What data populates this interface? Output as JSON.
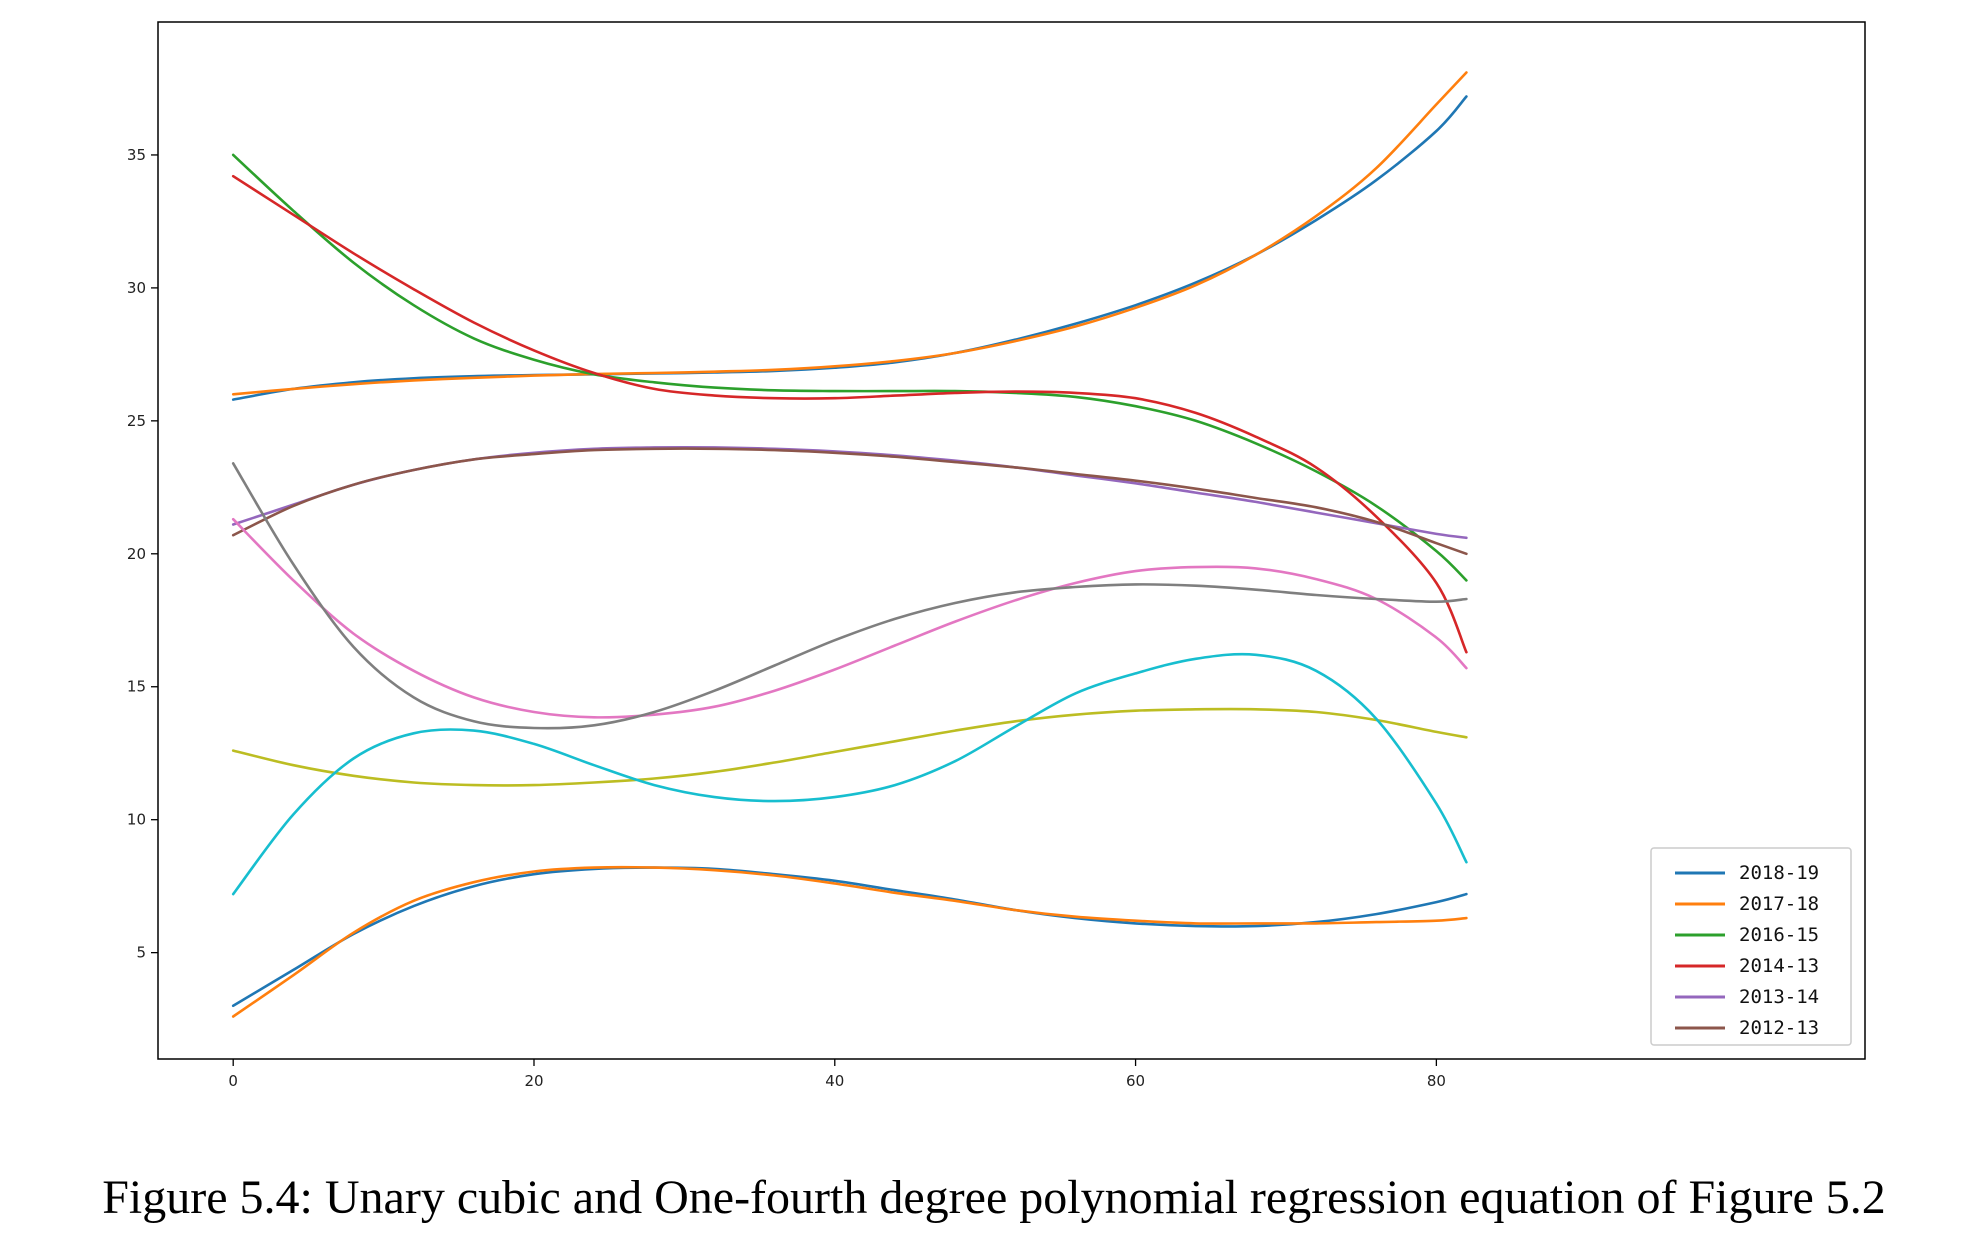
{
  "caption": "Figure 5.4: Unary cubic and One-fourth degree polynomial regression equation of Figure 5.2",
  "chart_data": {
    "type": "line",
    "title": "",
    "xlabel": "",
    "ylabel": "",
    "xlim": [
      -5,
      108.5
    ],
    "ylim": [
      1.0,
      40.0
    ],
    "x_ticks": [
      0,
      20,
      40,
      60,
      80
    ],
    "y_ticks": [
      5,
      10,
      15,
      20,
      25,
      30,
      35
    ],
    "grid": false,
    "legend_position": "lower-right",
    "legend_entries": [
      "2018-19",
      "2017-18",
      "2016-15",
      "2014-13",
      "2013-14",
      "2012-13"
    ],
    "x": [
      0,
      4,
      8,
      12,
      16,
      20,
      24,
      28,
      32,
      36,
      40,
      44,
      48,
      52,
      56,
      60,
      64,
      68,
      72,
      76,
      80,
      82
    ],
    "series": [
      {
        "name": "2018-19",
        "color": "#1f77b4",
        "values": [
          25.8,
          26.2,
          26.45,
          26.6,
          26.68,
          26.72,
          26.75,
          26.78,
          26.82,
          26.88,
          27.0,
          27.2,
          27.55,
          28.05,
          28.65,
          29.35,
          30.2,
          31.25,
          32.55,
          34.05,
          35.9,
          37.2
        ]
      },
      {
        "name": "2017-18",
        "color": "#ff7f0e",
        "values": [
          26.0,
          26.2,
          26.38,
          26.52,
          26.62,
          26.7,
          26.76,
          26.8,
          26.85,
          26.92,
          27.05,
          27.25,
          27.55,
          28.0,
          28.55,
          29.25,
          30.1,
          31.25,
          32.7,
          34.5,
          36.9,
          38.1
        ]
      },
      {
        "name": "2016-15",
        "color": "#2ca02c",
        "values": [
          35.0,
          32.9,
          30.95,
          29.35,
          28.1,
          27.3,
          26.75,
          26.45,
          26.25,
          26.15,
          26.12,
          26.12,
          26.12,
          26.05,
          25.9,
          25.55,
          25.0,
          24.15,
          23.1,
          21.8,
          20.1,
          19.0
        ]
      },
      {
        "name": "2014-13",
        "color": "#d62728",
        "values": [
          34.2,
          32.75,
          31.3,
          29.95,
          28.7,
          27.65,
          26.8,
          26.2,
          25.95,
          25.85,
          25.85,
          25.95,
          26.05,
          26.1,
          26.05,
          25.85,
          25.3,
          24.4,
          23.25,
          21.4,
          18.9,
          16.3
        ]
      },
      {
        "name": "2013-14",
        "color": "#9467bd",
        "values": [
          21.1,
          21.85,
          22.6,
          23.15,
          23.55,
          23.8,
          23.95,
          24.0,
          24.0,
          23.95,
          23.85,
          23.7,
          23.5,
          23.25,
          22.95,
          22.65,
          22.3,
          21.95,
          21.55,
          21.15,
          20.75,
          20.6
        ]
      },
      {
        "name": "2012-13",
        "color": "#8c564b",
        "values": [
          20.7,
          21.8,
          22.6,
          23.15,
          23.55,
          23.75,
          23.9,
          23.95,
          23.95,
          23.9,
          23.8,
          23.65,
          23.45,
          23.25,
          23.0,
          22.75,
          22.45,
          22.1,
          21.75,
          21.2,
          20.4,
          20.0
        ]
      },
      {
        "color": "#e377c2",
        "values": [
          21.3,
          19.0,
          17.0,
          15.6,
          14.6,
          14.05,
          13.85,
          13.95,
          14.25,
          14.85,
          15.65,
          16.55,
          17.45,
          18.25,
          18.9,
          19.35,
          19.5,
          19.45,
          19.05,
          18.3,
          16.85,
          15.7
        ]
      },
      {
        "color": "#7f7f7f",
        "values": [
          23.4,
          19.6,
          16.5,
          14.6,
          13.7,
          13.45,
          13.55,
          14.05,
          14.85,
          15.8,
          16.75,
          17.55,
          18.15,
          18.55,
          18.75,
          18.85,
          18.8,
          18.65,
          18.45,
          18.3,
          18.2,
          18.3
        ]
      },
      {
        "color": "#bcbd22",
        "values": [
          12.6,
          12.05,
          11.65,
          11.4,
          11.3,
          11.3,
          11.4,
          11.55,
          11.8,
          12.15,
          12.55,
          12.95,
          13.35,
          13.7,
          13.95,
          14.1,
          14.15,
          14.15,
          14.05,
          13.75,
          13.3,
          13.1
        ]
      },
      {
        "color": "#17becf",
        "values": [
          7.2,
          10.2,
          12.3,
          13.25,
          13.35,
          12.85,
          12.05,
          11.3,
          10.85,
          10.7,
          10.85,
          11.3,
          12.2,
          13.5,
          14.75,
          15.5,
          16.05,
          16.2,
          15.6,
          13.8,
          10.6,
          8.4
        ]
      },
      {
        "color": "#1f77b4",
        "values": [
          3.0,
          4.35,
          5.7,
          6.75,
          7.5,
          7.95,
          8.15,
          8.2,
          8.15,
          7.95,
          7.7,
          7.35,
          7.0,
          6.6,
          6.3,
          6.1,
          6.0,
          6.0,
          6.15,
          6.45,
          6.9,
          7.2
        ]
      },
      {
        "color": "#ff7f0e",
        "values": [
          2.6,
          4.15,
          5.75,
          6.95,
          7.65,
          8.05,
          8.2,
          8.2,
          8.1,
          7.9,
          7.6,
          7.25,
          6.95,
          6.6,
          6.35,
          6.2,
          6.1,
          6.1,
          6.1,
          6.15,
          6.2,
          6.3
        ]
      }
    ]
  }
}
